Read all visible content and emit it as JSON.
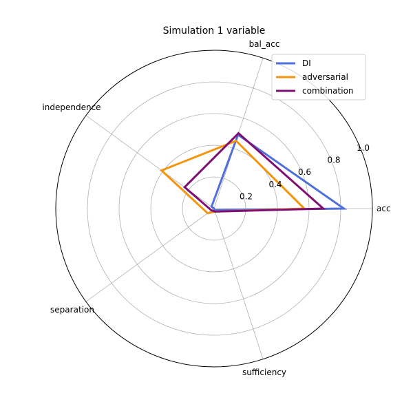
{
  "chart_data": {
    "type": "radar",
    "title": "Simulation 1 variable",
    "axes": [
      "acc",
      "bal_acc",
      "independence",
      "separation",
      "sufficiency"
    ],
    "rlim": [
      0,
      1.0
    ],
    "rticks": [
      0.2,
      0.4,
      0.6,
      0.8,
      1.0
    ],
    "rtick_labels": [
      "0.2",
      "0.4",
      "0.6",
      "0.8",
      "1.0"
    ],
    "grid": true,
    "legend_position": "top-right",
    "series": [
      {
        "name": "DI",
        "color": "#4f6fdb",
        "values": [
          0.82,
          0.49,
          0.02,
          0.0,
          0.01
        ]
      },
      {
        "name": "adversarial",
        "color": "#f2950d",
        "values": [
          0.57,
          0.45,
          0.41,
          0.05,
          0.02
        ]
      },
      {
        "name": "combination",
        "color": "#7e0f73",
        "values": [
          0.69,
          0.5,
          0.23,
          0.02,
          0.02
        ]
      }
    ]
  }
}
